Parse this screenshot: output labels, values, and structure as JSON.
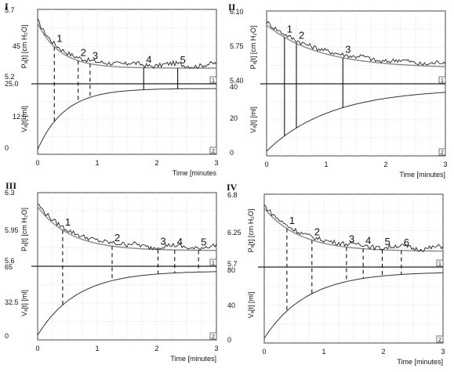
{
  "chart_data": [
    {
      "panel": "I",
      "type": "line",
      "x_axis": {
        "label": "Time [minutes",
        "range": [
          0,
          3
        ],
        "ticks": [
          "0",
          "1",
          "2",
          "3"
        ]
      },
      "pressure_axis": {
        "label": "Pₐ[t] [cm H₂O]",
        "ticks": [
          "5.7",
          "45",
          "5.2"
        ]
      },
      "volume_axis": {
        "label": "Vₐ[t] [ml]",
        "ticks": [
          "25.0",
          "12.5",
          "0"
        ]
      },
      "marks": [
        {
          "label": "1",
          "t": 0.28,
          "line": "dashed"
        },
        {
          "label": "2",
          "t": 0.68,
          "line": "dashed"
        },
        {
          "label": "3",
          "t": 0.88,
          "line": "dashed"
        },
        {
          "label": "4",
          "t": 1.78,
          "line": "solid"
        },
        {
          "label": "5",
          "t": 2.35,
          "line": "solid"
        }
      ],
      "badges": [
        "1",
        "2"
      ]
    },
    {
      "panel": "II",
      "type": "line",
      "x_axis": {
        "label": "Time [minutes]",
        "range": [
          0,
          3
        ],
        "ticks": [
          "0",
          "1",
          "2",
          "3"
        ]
      },
      "pressure_axis": {
        "label": "Pₐ[t] [cm H₂O]",
        "ticks": [
          "6.10",
          "5.75",
          "5.40"
        ]
      },
      "volume_axis": {
        "label": "Vₐ[t] [ml]",
        "ticks": [
          "40",
          "20",
          "0"
        ]
      },
      "marks": [
        {
          "label": "1",
          "t": 0.3,
          "line": "solid"
        },
        {
          "label": "2",
          "t": 0.5,
          "line": "solid"
        },
        {
          "label": "3",
          "t": 1.28,
          "line": "solid"
        }
      ],
      "badges": [
        "1",
        "2"
      ]
    },
    {
      "panel": "III",
      "type": "line",
      "x_axis": {
        "label": "Time [minutes]",
        "range": [
          0,
          3
        ],
        "ticks": [
          "0",
          "1",
          "2",
          "3"
        ]
      },
      "pressure_axis": {
        "label": "Pₐ[t] [cm H₂O]",
        "ticks": [
          "6.3",
          "5.95",
          "5.6"
        ]
      },
      "volume_axis": {
        "label": "Vₐ[t] [ml]",
        "ticks": [
          "65",
          "32.5",
          "0"
        ]
      },
      "marks": [
        {
          "label": "1",
          "t": 0.42,
          "line": "dashed"
        },
        {
          "label": "2",
          "t": 1.25,
          "line": "dashed"
        },
        {
          "label": "3",
          "t": 2.02,
          "line": "dashed"
        },
        {
          "label": "4",
          "t": 2.3,
          "line": "dashed"
        },
        {
          "label": "5",
          "t": 2.7,
          "line": "dashed"
        }
      ],
      "badges": [
        "1",
        "2"
      ]
    },
    {
      "panel": "IV",
      "type": "line",
      "x_axis": {
        "label": "Time [minutes]",
        "range": [
          0,
          3
        ],
        "ticks": [
          "0",
          "1",
          "2",
          "3"
        ]
      },
      "pressure_axis": {
        "label": "Pₐ[t] [cm H₂O]",
        "ticks": [
          "6.8",
          "6.25",
          "5.7"
        ]
      },
      "volume_axis": {
        "label": "Vₐ[t] [ml]",
        "ticks": [
          "80",
          "40",
          "0"
        ]
      },
      "marks": [
        {
          "label": "1",
          "t": 0.38,
          "line": "dashed"
        },
        {
          "label": "2",
          "t": 0.8,
          "line": "dashed"
        },
        {
          "label": "3",
          "t": 1.38,
          "line": "dashed"
        },
        {
          "label": "4",
          "t": 1.66,
          "line": "dashed"
        },
        {
          "label": "5",
          "t": 1.98,
          "line": "dashed"
        },
        {
          "label": "6",
          "t": 2.3,
          "line": "dashed"
        }
      ],
      "badges": [
        "1",
        "2"
      ]
    }
  ]
}
